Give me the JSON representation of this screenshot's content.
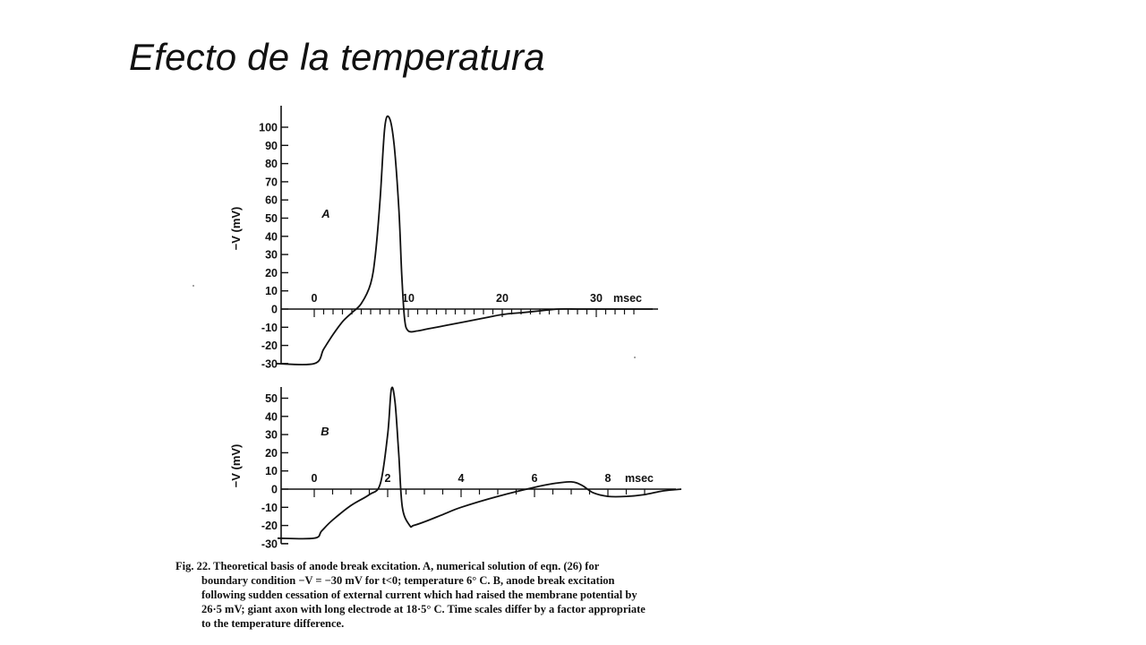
{
  "slide": {
    "title": "Efecto de la temperatura"
  },
  "caption": {
    "lines": [
      "Fig. 22. Theoretical basis of anode break excitation. A, numerical solution of eqn. (26) for",
      "boundary condition −V = −30 mV for t<0; temperature 6° C. B, anode break excitation",
      "following sudden cessation of external current which had raised the membrane potential by",
      "26·5 mV; giant axon with long electrode at 18·5° C. Time scales differ by a factor appropriate",
      "to the temperature difference."
    ]
  },
  "chart_data": [
    {
      "type": "line",
      "panel_label": "A",
      "ylabel": "−V (mV)",
      "xlabel": "",
      "x_unit_label": "msec",
      "ylim": [
        -30,
        100
      ],
      "xlim": [
        -4,
        36
      ],
      "yticks": [
        -30,
        -20,
        -10,
        0,
        10,
        20,
        30,
        40,
        50,
        60,
        70,
        80,
        90,
        100
      ],
      "xtick_labels": [
        0,
        10,
        20,
        30
      ],
      "grid": false,
      "series": [
        {
          "x": [
            -4,
            0,
            1,
            2,
            3,
            4,
            5,
            6,
            6.5,
            7,
            7.5,
            8,
            8.5,
            9,
            9.3,
            9.6,
            10,
            11,
            12,
            14,
            16,
            18,
            20,
            22,
            24,
            26,
            28,
            30,
            32,
            34,
            36
          ],
          "y": [
            -30,
            -30,
            -22,
            -14,
            -7,
            -2,
            3,
            14,
            30,
            60,
            100,
            105,
            90,
            55,
            20,
            -5,
            -12,
            -12,
            -11,
            -9,
            -7,
            -5,
            -3,
            -2,
            -1,
            0,
            0,
            0,
            0,
            0,
            0
          ]
        }
      ]
    },
    {
      "type": "line",
      "panel_label": "B",
      "ylabel": "−V (mV)",
      "xlabel": "",
      "x_unit_label": "msec",
      "ylim": [
        -30,
        50
      ],
      "xlim": [
        -1,
        10
      ],
      "yticks": [
        -30,
        -20,
        -10,
        0,
        10,
        20,
        30,
        40,
        50
      ],
      "xtick_labels": [
        0,
        2,
        4,
        6,
        8
      ],
      "grid": false,
      "series": [
        {
          "x": [
            -1,
            0,
            0.2,
            0.5,
            1,
            1.5,
            1.8,
            2.0,
            2.1,
            2.2,
            2.3,
            2.4,
            2.6,
            2.7,
            3,
            3.5,
            4,
            5,
            6,
            6.5,
            7,
            7.3,
            7.6,
            8,
            8.5,
            9,
            9.5,
            10
          ],
          "y": [
            -27,
            -27,
            -23,
            -17,
            -9,
            -3,
            3,
            30,
            55,
            48,
            20,
            -10,
            -20,
            -20,
            -18,
            -14,
            -10,
            -4,
            1,
            3,
            4,
            2,
            -2,
            -4,
            -4,
            -3,
            -1,
            0
          ]
        }
      ]
    }
  ]
}
